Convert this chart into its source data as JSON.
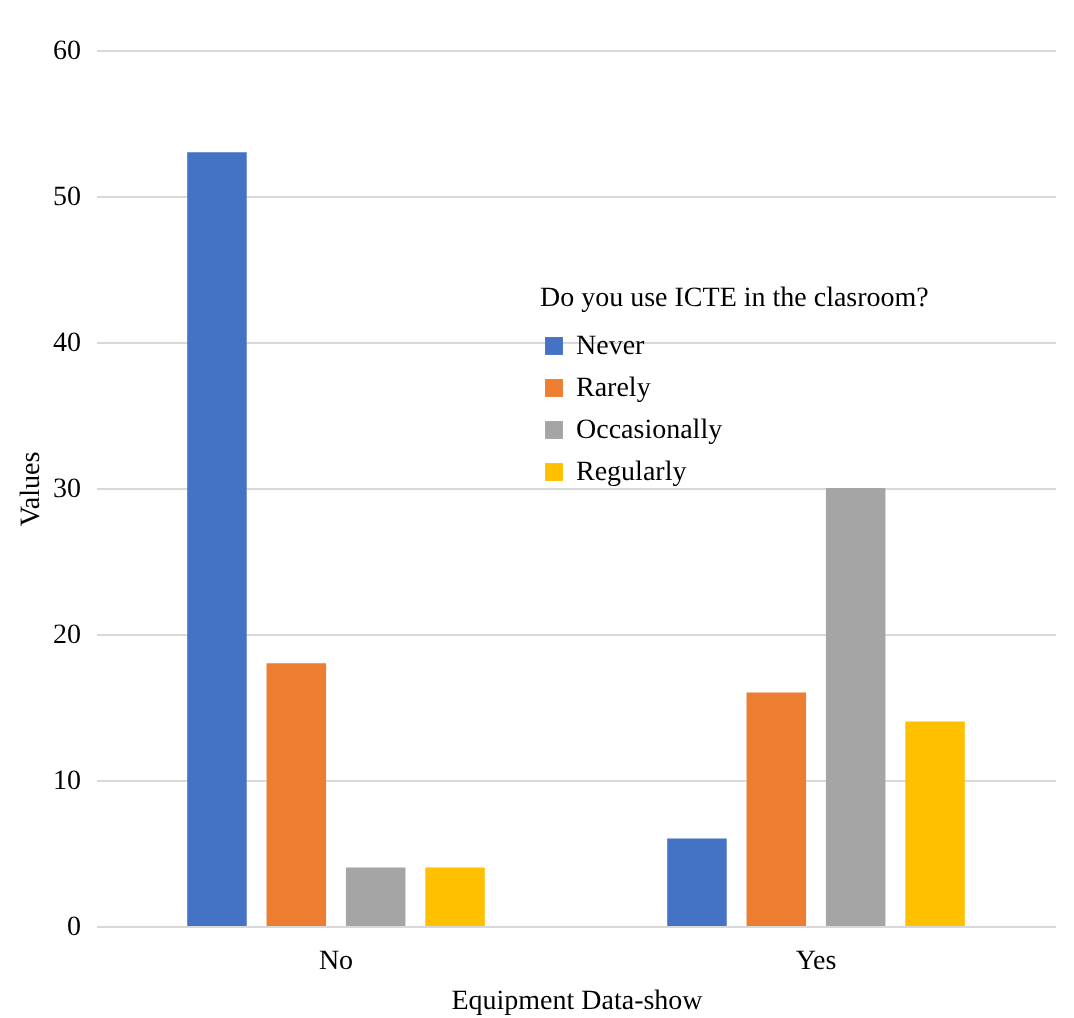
{
  "chart_data": {
    "type": "bar",
    "xlabel": "Equipment Data-show",
    "ylabel": "Values",
    "legend_title": "Do you use ICTE in the clasroom?",
    "categories": [
      "No",
      "Yes"
    ],
    "series": [
      {
        "name": "Never",
        "color": "#4472c4",
        "values": [
          53,
          6
        ]
      },
      {
        "name": "Rarely",
        "color": "#ed7d31",
        "values": [
          18,
          16
        ]
      },
      {
        "name": "Occasionally",
        "color": "#a5a5a5",
        "values": [
          4,
          30
        ]
      },
      {
        "name": "Regularly",
        "color": "#ffc000",
        "values": [
          4,
          14
        ]
      }
    ],
    "ylim": [
      0,
      60
    ],
    "yticks": [
      0,
      10,
      20,
      30,
      40,
      50,
      60
    ],
    "grid": "y",
    "legend": "center"
  }
}
